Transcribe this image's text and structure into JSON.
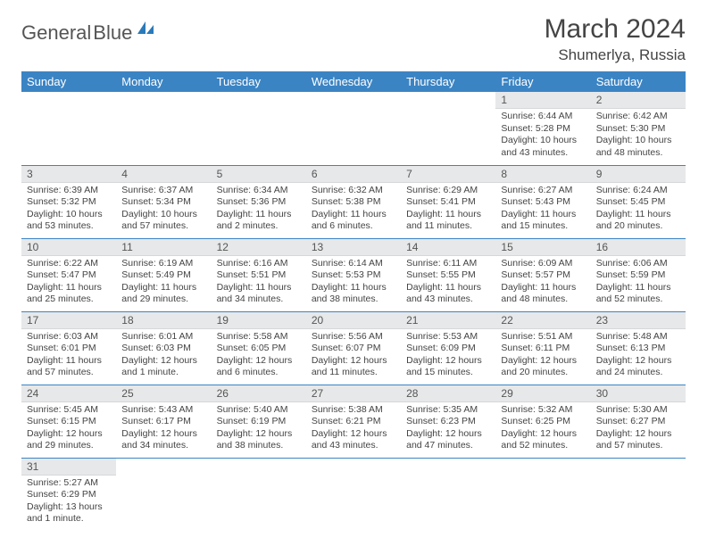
{
  "brand": {
    "part1": "General",
    "part2": "Blue"
  },
  "title": "March 2024",
  "location": "Shumerlya, Russia",
  "colors": {
    "header_bg": "#3b84c4",
    "header_text": "#ffffff",
    "daynum_bg": "#e7e8e9",
    "cell_border": "#3b84c4",
    "text": "#444444",
    "brand_gray": "#555555",
    "brand_blue": "#2a7ab9"
  },
  "weekdays": [
    "Sunday",
    "Monday",
    "Tuesday",
    "Wednesday",
    "Thursday",
    "Friday",
    "Saturday"
  ],
  "weeks": [
    [
      null,
      null,
      null,
      null,
      null,
      {
        "n": "1",
        "sunrise": "Sunrise: 6:44 AM",
        "sunset": "Sunset: 5:28 PM",
        "day1": "Daylight: 10 hours",
        "day2": "and 43 minutes."
      },
      {
        "n": "2",
        "sunrise": "Sunrise: 6:42 AM",
        "sunset": "Sunset: 5:30 PM",
        "day1": "Daylight: 10 hours",
        "day2": "and 48 minutes."
      }
    ],
    [
      {
        "n": "3",
        "sunrise": "Sunrise: 6:39 AM",
        "sunset": "Sunset: 5:32 PM",
        "day1": "Daylight: 10 hours",
        "day2": "and 53 minutes."
      },
      {
        "n": "4",
        "sunrise": "Sunrise: 6:37 AM",
        "sunset": "Sunset: 5:34 PM",
        "day1": "Daylight: 10 hours",
        "day2": "and 57 minutes."
      },
      {
        "n": "5",
        "sunrise": "Sunrise: 6:34 AM",
        "sunset": "Sunset: 5:36 PM",
        "day1": "Daylight: 11 hours",
        "day2": "and 2 minutes."
      },
      {
        "n": "6",
        "sunrise": "Sunrise: 6:32 AM",
        "sunset": "Sunset: 5:38 PM",
        "day1": "Daylight: 11 hours",
        "day2": "and 6 minutes."
      },
      {
        "n": "7",
        "sunrise": "Sunrise: 6:29 AM",
        "sunset": "Sunset: 5:41 PM",
        "day1": "Daylight: 11 hours",
        "day2": "and 11 minutes."
      },
      {
        "n": "8",
        "sunrise": "Sunrise: 6:27 AM",
        "sunset": "Sunset: 5:43 PM",
        "day1": "Daylight: 11 hours",
        "day2": "and 15 minutes."
      },
      {
        "n": "9",
        "sunrise": "Sunrise: 6:24 AM",
        "sunset": "Sunset: 5:45 PM",
        "day1": "Daylight: 11 hours",
        "day2": "and 20 minutes."
      }
    ],
    [
      {
        "n": "10",
        "sunrise": "Sunrise: 6:22 AM",
        "sunset": "Sunset: 5:47 PM",
        "day1": "Daylight: 11 hours",
        "day2": "and 25 minutes."
      },
      {
        "n": "11",
        "sunrise": "Sunrise: 6:19 AM",
        "sunset": "Sunset: 5:49 PM",
        "day1": "Daylight: 11 hours",
        "day2": "and 29 minutes."
      },
      {
        "n": "12",
        "sunrise": "Sunrise: 6:16 AM",
        "sunset": "Sunset: 5:51 PM",
        "day1": "Daylight: 11 hours",
        "day2": "and 34 minutes."
      },
      {
        "n": "13",
        "sunrise": "Sunrise: 6:14 AM",
        "sunset": "Sunset: 5:53 PM",
        "day1": "Daylight: 11 hours",
        "day2": "and 38 minutes."
      },
      {
        "n": "14",
        "sunrise": "Sunrise: 6:11 AM",
        "sunset": "Sunset: 5:55 PM",
        "day1": "Daylight: 11 hours",
        "day2": "and 43 minutes."
      },
      {
        "n": "15",
        "sunrise": "Sunrise: 6:09 AM",
        "sunset": "Sunset: 5:57 PM",
        "day1": "Daylight: 11 hours",
        "day2": "and 48 minutes."
      },
      {
        "n": "16",
        "sunrise": "Sunrise: 6:06 AM",
        "sunset": "Sunset: 5:59 PM",
        "day1": "Daylight: 11 hours",
        "day2": "and 52 minutes."
      }
    ],
    [
      {
        "n": "17",
        "sunrise": "Sunrise: 6:03 AM",
        "sunset": "Sunset: 6:01 PM",
        "day1": "Daylight: 11 hours",
        "day2": "and 57 minutes."
      },
      {
        "n": "18",
        "sunrise": "Sunrise: 6:01 AM",
        "sunset": "Sunset: 6:03 PM",
        "day1": "Daylight: 12 hours",
        "day2": "and 1 minute."
      },
      {
        "n": "19",
        "sunrise": "Sunrise: 5:58 AM",
        "sunset": "Sunset: 6:05 PM",
        "day1": "Daylight: 12 hours",
        "day2": "and 6 minutes."
      },
      {
        "n": "20",
        "sunrise": "Sunrise: 5:56 AM",
        "sunset": "Sunset: 6:07 PM",
        "day1": "Daylight: 12 hours",
        "day2": "and 11 minutes."
      },
      {
        "n": "21",
        "sunrise": "Sunrise: 5:53 AM",
        "sunset": "Sunset: 6:09 PM",
        "day1": "Daylight: 12 hours",
        "day2": "and 15 minutes."
      },
      {
        "n": "22",
        "sunrise": "Sunrise: 5:51 AM",
        "sunset": "Sunset: 6:11 PM",
        "day1": "Daylight: 12 hours",
        "day2": "and 20 minutes."
      },
      {
        "n": "23",
        "sunrise": "Sunrise: 5:48 AM",
        "sunset": "Sunset: 6:13 PM",
        "day1": "Daylight: 12 hours",
        "day2": "and 24 minutes."
      }
    ],
    [
      {
        "n": "24",
        "sunrise": "Sunrise: 5:45 AM",
        "sunset": "Sunset: 6:15 PM",
        "day1": "Daylight: 12 hours",
        "day2": "and 29 minutes."
      },
      {
        "n": "25",
        "sunrise": "Sunrise: 5:43 AM",
        "sunset": "Sunset: 6:17 PM",
        "day1": "Daylight: 12 hours",
        "day2": "and 34 minutes."
      },
      {
        "n": "26",
        "sunrise": "Sunrise: 5:40 AM",
        "sunset": "Sunset: 6:19 PM",
        "day1": "Daylight: 12 hours",
        "day2": "and 38 minutes."
      },
      {
        "n": "27",
        "sunrise": "Sunrise: 5:38 AM",
        "sunset": "Sunset: 6:21 PM",
        "day1": "Daylight: 12 hours",
        "day2": "and 43 minutes."
      },
      {
        "n": "28",
        "sunrise": "Sunrise: 5:35 AM",
        "sunset": "Sunset: 6:23 PM",
        "day1": "Daylight: 12 hours",
        "day2": "and 47 minutes."
      },
      {
        "n": "29",
        "sunrise": "Sunrise: 5:32 AM",
        "sunset": "Sunset: 6:25 PM",
        "day1": "Daylight: 12 hours",
        "day2": "and 52 minutes."
      },
      {
        "n": "30",
        "sunrise": "Sunrise: 5:30 AM",
        "sunset": "Sunset: 6:27 PM",
        "day1": "Daylight: 12 hours",
        "day2": "and 57 minutes."
      }
    ],
    [
      {
        "n": "31",
        "sunrise": "Sunrise: 5:27 AM",
        "sunset": "Sunset: 6:29 PM",
        "day1": "Daylight: 13 hours",
        "day2": "and 1 minute."
      },
      null,
      null,
      null,
      null,
      null,
      null
    ]
  ]
}
